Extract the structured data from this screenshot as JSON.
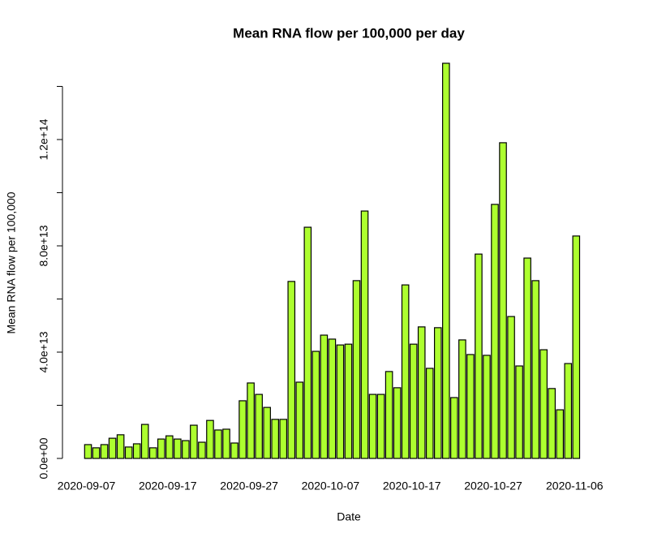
{
  "chart_data": {
    "type": "bar",
    "title": "Mean RNA flow per 100,000 per day",
    "xlabel": "Date",
    "ylabel": "Mean RNA flow per 100,000",
    "color": "#adff2f",
    "edgecolor": "#000000",
    "categories": [
      "2020-09-07",
      null,
      null,
      null,
      null,
      null,
      null,
      null,
      null,
      null,
      "2020-09-17",
      null,
      null,
      null,
      null,
      null,
      null,
      null,
      null,
      null,
      "2020-09-27",
      null,
      null,
      null,
      null,
      null,
      null,
      null,
      null,
      null,
      "2020-10-07",
      null,
      null,
      null,
      null,
      null,
      null,
      null,
      null,
      null,
      "2020-10-17",
      null,
      null,
      null,
      null,
      null,
      null,
      null,
      null,
      null,
      "2020-10-27",
      null,
      null,
      null,
      null,
      null,
      null,
      null,
      null,
      null,
      "2020-11-06"
    ],
    "values": [
      5200000000000.0,
      4000000000000.0,
      5200000000000.0,
      7600000000000.0,
      8900000000000.0,
      4300000000000.0,
      5500000000000.0,
      12800000000000.0,
      4000000000000.0,
      7300000000000.0,
      8500000000000.0,
      7300000000000.0,
      6700000000000.0,
      12500000000000.0,
      6100000000000.0,
      14300000000000.0,
      10700000000000.0,
      11000000000000.0,
      5800000000000.0,
      21700000000000.0,
      28400000000000.0,
      24100000000000.0,
      19200000000000.0,
      14700000000000.0,
      14700000000000.0,
      66600000000000.0,
      28700000000000.0,
      87000000000000.0,
      40300000000000.0,
      46400000000000.0,
      44900000000000.0,
      42700000000000.0,
      43000000000000.0,
      66900000000000.0,
      93100000000000.0,
      24100000000000.0,
      24100000000000.0,
      32700000000000.0,
      26600000000000.0,
      65300000000000.0,
      43000000000000.0,
      49500000000000.0,
      33900000000000.0,
      49200000000000.0,
      148700000000000.0,
      22900000000000.0,
      44600000000000.0,
      39100000000000.0,
      76900000000000.0,
      38800000000000.0,
      95600000000000.0,
      118800000000000.0,
      53400000000000.0,
      34800000000000.0,
      75400000000000.0,
      66900000000000.0,
      40900000000000.0,
      26300000000000.0,
      18300000000000.0,
      35700000000000.0,
      83700000000000.0
    ],
    "ylim": [
      0,
      149000000000000.0
    ],
    "yticks": [
      {
        "value": 0,
        "label": "0.0e+00"
      },
      {
        "value": 20000000000000.0,
        "label": null
      },
      {
        "value": 40000000000000.0,
        "label": "4.0e+13"
      },
      {
        "value": 60000000000000.0,
        "label": null
      },
      {
        "value": 80000000000000.0,
        "label": "8.0e+13"
      },
      {
        "value": 100000000000000.0,
        "label": null
      },
      {
        "value": 120000000000000.0,
        "label": "1.2e+14"
      },
      {
        "value": 140000000000000.0,
        "label": null
      }
    ],
    "grid": false
  }
}
